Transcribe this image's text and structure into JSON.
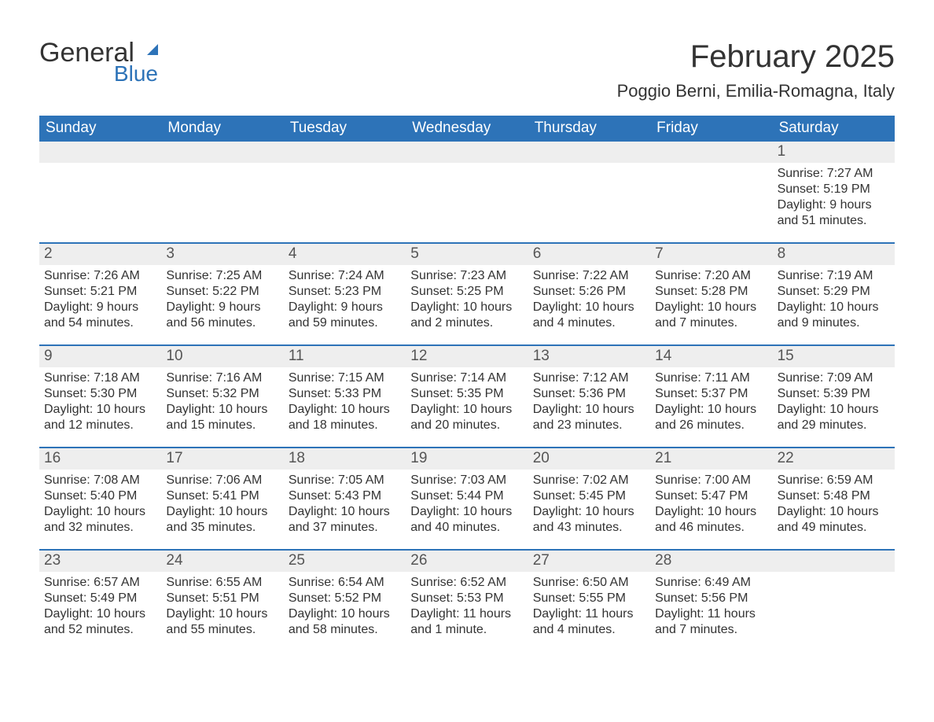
{
  "logo": {
    "word1": "General",
    "word2": "Blue"
  },
  "title": "February 2025",
  "subtitle": "Poggio Berni, Emilia-Romagna, Italy",
  "colors": {
    "header_bg": "#2d73b8",
    "header_text": "#ffffff",
    "daynum_bg": "#eeeeee",
    "daynum_text": "#555555",
    "body_text": "#333333",
    "rule": "#2d73b8",
    "page_bg": "#ffffff"
  },
  "typography": {
    "title_fontsize": 40,
    "subtitle_fontsize": 22,
    "dow_fontsize": 19,
    "daynum_fontsize": 19,
    "info_fontsize": 16
  },
  "layout": {
    "columns": 7,
    "rows": 5,
    "first_weekday_index": 6
  },
  "weekdays": [
    "Sunday",
    "Monday",
    "Tuesday",
    "Wednesday",
    "Thursday",
    "Friday",
    "Saturday"
  ],
  "days": [
    {
      "n": 1,
      "sunrise": "7:27 AM",
      "sunset": "5:19 PM",
      "daylight": "9 hours and 51 minutes."
    },
    {
      "n": 2,
      "sunrise": "7:26 AM",
      "sunset": "5:21 PM",
      "daylight": "9 hours and 54 minutes."
    },
    {
      "n": 3,
      "sunrise": "7:25 AM",
      "sunset": "5:22 PM",
      "daylight": "9 hours and 56 minutes."
    },
    {
      "n": 4,
      "sunrise": "7:24 AM",
      "sunset": "5:23 PM",
      "daylight": "9 hours and 59 minutes."
    },
    {
      "n": 5,
      "sunrise": "7:23 AM",
      "sunset": "5:25 PM",
      "daylight": "10 hours and 2 minutes."
    },
    {
      "n": 6,
      "sunrise": "7:22 AM",
      "sunset": "5:26 PM",
      "daylight": "10 hours and 4 minutes."
    },
    {
      "n": 7,
      "sunrise": "7:20 AM",
      "sunset": "5:28 PM",
      "daylight": "10 hours and 7 minutes."
    },
    {
      "n": 8,
      "sunrise": "7:19 AM",
      "sunset": "5:29 PM",
      "daylight": "10 hours and 9 minutes."
    },
    {
      "n": 9,
      "sunrise": "7:18 AM",
      "sunset": "5:30 PM",
      "daylight": "10 hours and 12 minutes."
    },
    {
      "n": 10,
      "sunrise": "7:16 AM",
      "sunset": "5:32 PM",
      "daylight": "10 hours and 15 minutes."
    },
    {
      "n": 11,
      "sunrise": "7:15 AM",
      "sunset": "5:33 PM",
      "daylight": "10 hours and 18 minutes."
    },
    {
      "n": 12,
      "sunrise": "7:14 AM",
      "sunset": "5:35 PM",
      "daylight": "10 hours and 20 minutes."
    },
    {
      "n": 13,
      "sunrise": "7:12 AM",
      "sunset": "5:36 PM",
      "daylight": "10 hours and 23 minutes."
    },
    {
      "n": 14,
      "sunrise": "7:11 AM",
      "sunset": "5:37 PM",
      "daylight": "10 hours and 26 minutes."
    },
    {
      "n": 15,
      "sunrise": "7:09 AM",
      "sunset": "5:39 PM",
      "daylight": "10 hours and 29 minutes."
    },
    {
      "n": 16,
      "sunrise": "7:08 AM",
      "sunset": "5:40 PM",
      "daylight": "10 hours and 32 minutes."
    },
    {
      "n": 17,
      "sunrise": "7:06 AM",
      "sunset": "5:41 PM",
      "daylight": "10 hours and 35 minutes."
    },
    {
      "n": 18,
      "sunrise": "7:05 AM",
      "sunset": "5:43 PM",
      "daylight": "10 hours and 37 minutes."
    },
    {
      "n": 19,
      "sunrise": "7:03 AM",
      "sunset": "5:44 PM",
      "daylight": "10 hours and 40 minutes."
    },
    {
      "n": 20,
      "sunrise": "7:02 AM",
      "sunset": "5:45 PM",
      "daylight": "10 hours and 43 minutes."
    },
    {
      "n": 21,
      "sunrise": "7:00 AM",
      "sunset": "5:47 PM",
      "daylight": "10 hours and 46 minutes."
    },
    {
      "n": 22,
      "sunrise": "6:59 AM",
      "sunset": "5:48 PM",
      "daylight": "10 hours and 49 minutes."
    },
    {
      "n": 23,
      "sunrise": "6:57 AM",
      "sunset": "5:49 PM",
      "daylight": "10 hours and 52 minutes."
    },
    {
      "n": 24,
      "sunrise": "6:55 AM",
      "sunset": "5:51 PM",
      "daylight": "10 hours and 55 minutes."
    },
    {
      "n": 25,
      "sunrise": "6:54 AM",
      "sunset": "5:52 PM",
      "daylight": "10 hours and 58 minutes."
    },
    {
      "n": 26,
      "sunrise": "6:52 AM",
      "sunset": "5:53 PM",
      "daylight": "11 hours and 1 minute."
    },
    {
      "n": 27,
      "sunrise": "6:50 AM",
      "sunset": "5:55 PM",
      "daylight": "11 hours and 4 minutes."
    },
    {
      "n": 28,
      "sunrise": "6:49 AM",
      "sunset": "5:56 PM",
      "daylight": "11 hours and 7 minutes."
    }
  ],
  "labels": {
    "sunrise": "Sunrise:",
    "sunset": "Sunset:",
    "daylight": "Daylight:"
  }
}
